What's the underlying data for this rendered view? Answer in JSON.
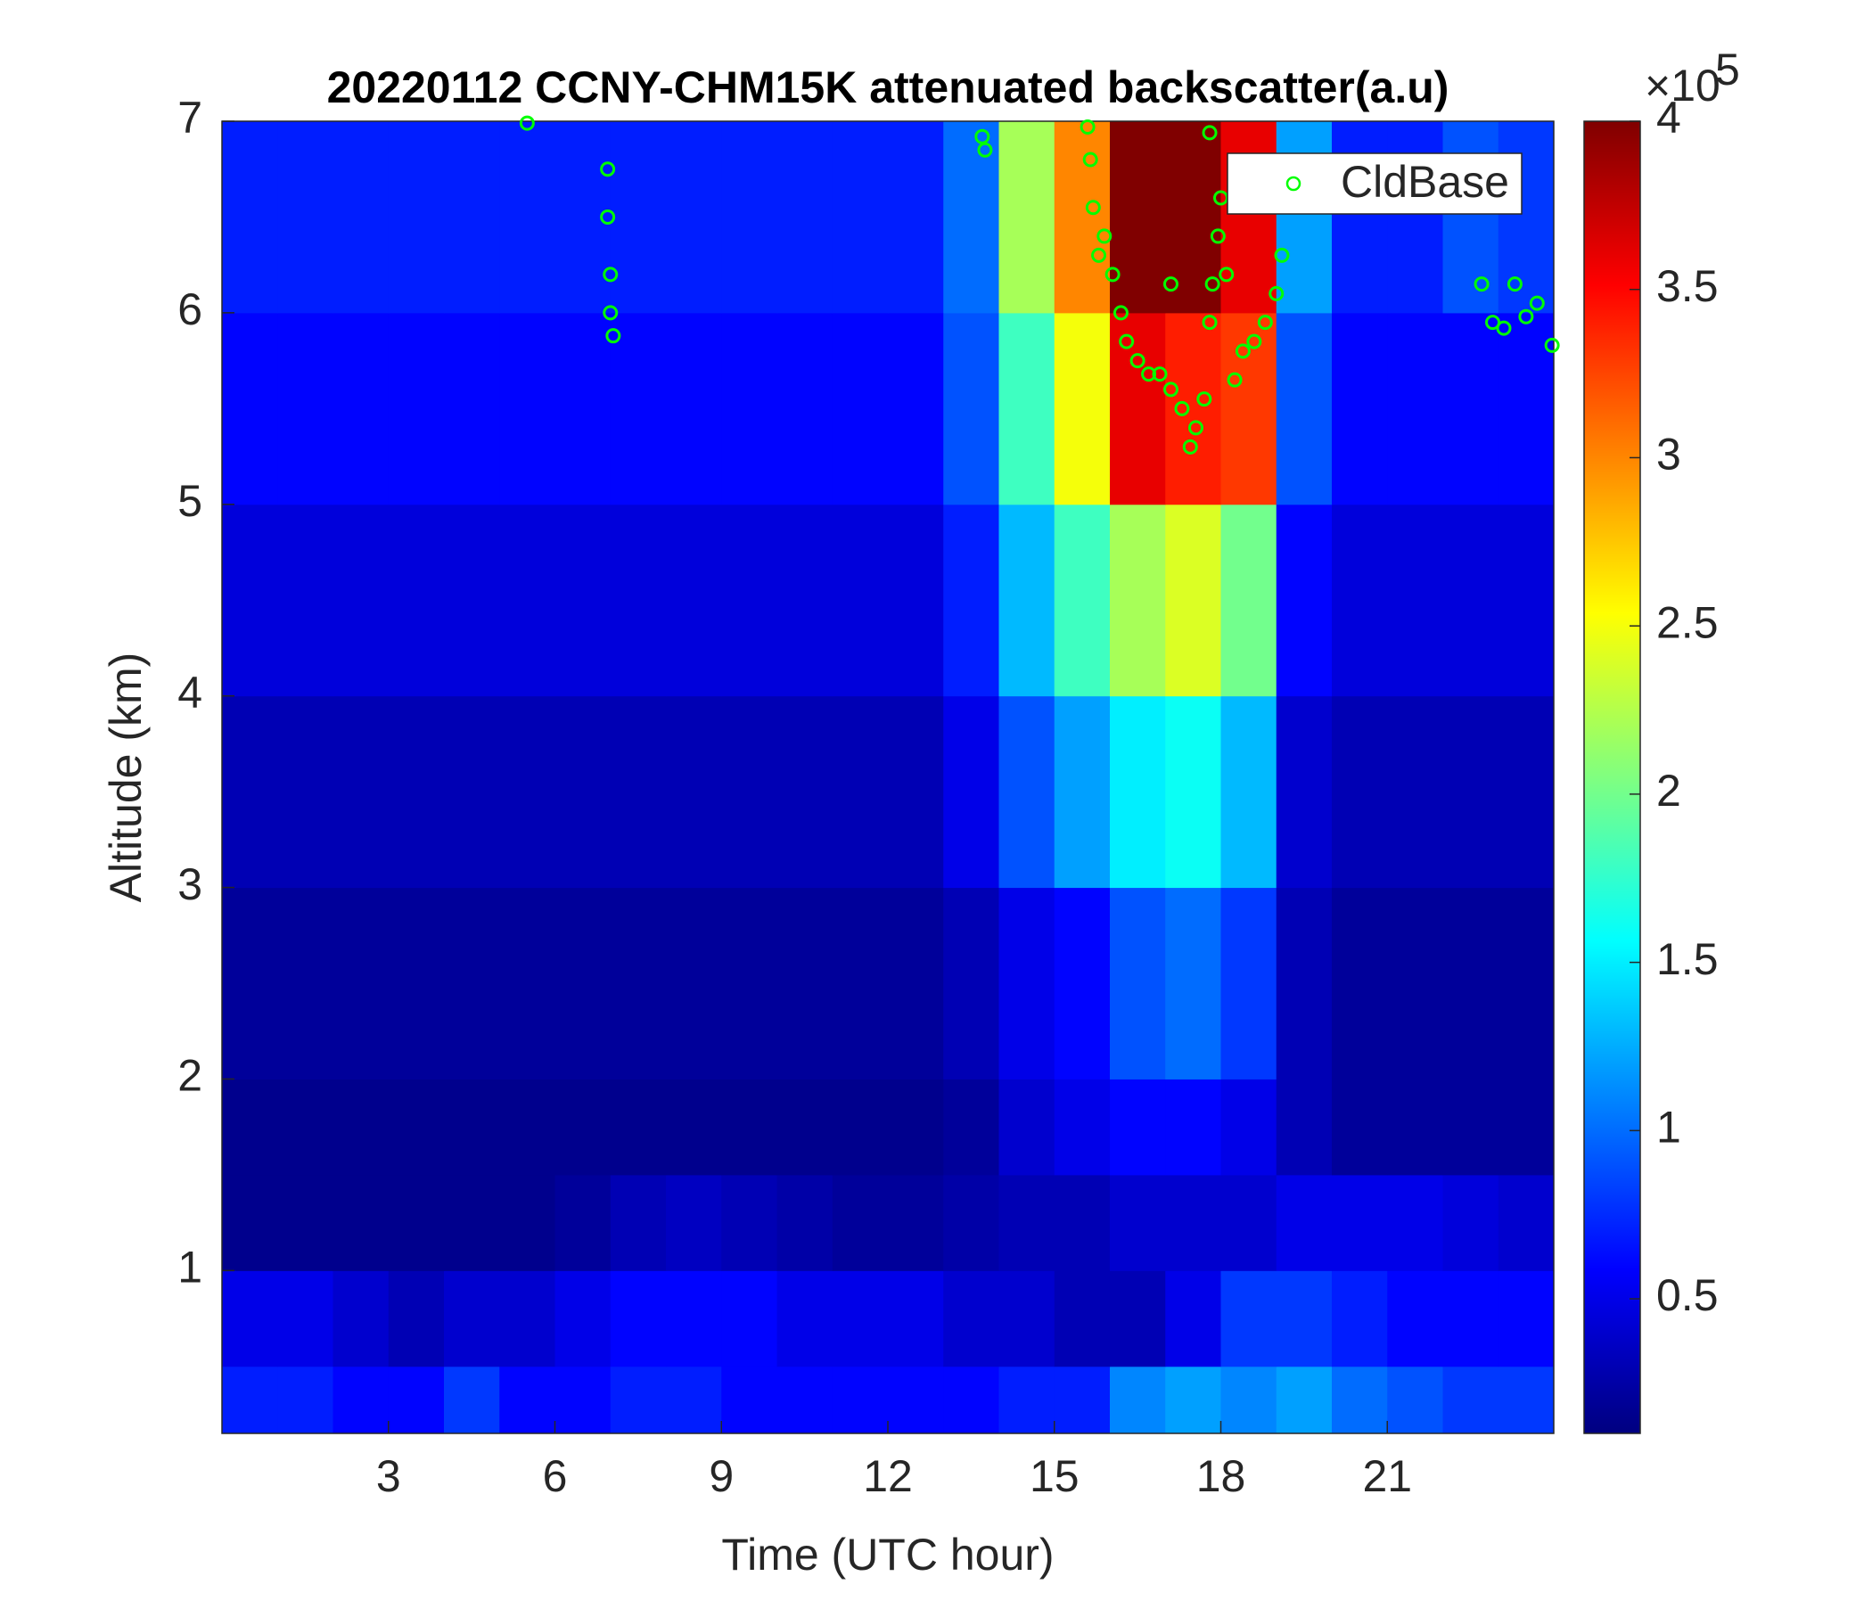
{
  "chart_data": {
    "type": "heatmap",
    "title": "20220112 CCNY-CHM15K attenuated backscatter(a.u)",
    "xlabel": "Time (UTC hour)",
    "ylabel": "Altitude (km)",
    "xlim": [
      0,
      24
    ],
    "xticks": [
      3,
      6,
      9,
      12,
      15,
      18,
      21
    ],
    "ylim": [
      0.15,
      7
    ],
    "yticks": [
      1,
      2,
      3,
      4,
      5,
      6,
      7
    ],
    "x_bins": [
      0,
      1,
      2,
      3,
      4,
      5,
      6,
      7,
      8,
      9,
      10,
      11,
      12,
      13,
      14,
      15,
      16,
      17,
      18,
      19,
      20,
      21,
      22,
      23,
      24
    ],
    "y_bins": [
      0.15,
      0.5,
      1,
      1.5,
      2,
      3,
      4,
      5,
      6,
      7
    ],
    "values": [
      [
        0.7,
        0.7,
        0.6,
        0.6,
        0.8,
        0.6,
        0.6,
        0.7,
        0.7,
        0.6,
        0.6,
        0.6,
        0.6,
        0.6,
        0.7,
        0.7,
        1.1,
        1.2,
        1.1,
        1.2,
        1.0,
        0.9,
        0.8,
        0.8
      ],
      [
        0.5,
        0.5,
        0.4,
        0.3,
        0.4,
        0.4,
        0.5,
        0.6,
        0.6,
        0.6,
        0.5,
        0.5,
        0.5,
        0.4,
        0.4,
        0.3,
        0.3,
        0.5,
        0.8,
        0.8,
        0.7,
        0.6,
        0.6,
        0.6
      ],
      [
        0.15,
        0.15,
        0.15,
        0.15,
        0.15,
        0.15,
        0.2,
        0.3,
        0.35,
        0.3,
        0.25,
        0.2,
        0.2,
        0.25,
        0.3,
        0.3,
        0.4,
        0.4,
        0.4,
        0.5,
        0.5,
        0.5,
        0.45,
        0.4
      ],
      [
        0.15,
        0.15,
        0.15,
        0.15,
        0.15,
        0.15,
        0.15,
        0.15,
        0.15,
        0.15,
        0.15,
        0.15,
        0.15,
        0.2,
        0.4,
        0.5,
        0.6,
        0.6,
        0.5,
        0.3,
        0.2,
        0.2,
        0.2,
        0.2
      ],
      [
        0.2,
        0.2,
        0.2,
        0.2,
        0.2,
        0.2,
        0.2,
        0.2,
        0.2,
        0.2,
        0.2,
        0.2,
        0.2,
        0.3,
        0.5,
        0.6,
        0.9,
        1.0,
        0.8,
        0.3,
        0.2,
        0.2,
        0.2,
        0.2
      ],
      [
        0.3,
        0.3,
        0.3,
        0.3,
        0.3,
        0.3,
        0.3,
        0.3,
        0.3,
        0.3,
        0.3,
        0.3,
        0.3,
        0.5,
        0.9,
        1.2,
        1.5,
        1.6,
        1.3,
        0.4,
        0.3,
        0.3,
        0.3,
        0.3
      ],
      [
        0.45,
        0.45,
        0.45,
        0.45,
        0.45,
        0.45,
        0.45,
        0.45,
        0.45,
        0.45,
        0.45,
        0.45,
        0.45,
        0.7,
        1.3,
        1.8,
        2.2,
        2.4,
        2.0,
        0.6,
        0.45,
        0.45,
        0.45,
        0.45
      ],
      [
        0.6,
        0.6,
        0.6,
        0.6,
        0.6,
        0.6,
        0.6,
        0.6,
        0.6,
        0.6,
        0.6,
        0.6,
        0.6,
        0.9,
        1.8,
        2.5,
        3.6,
        3.4,
        3.3,
        0.9,
        0.6,
        0.6,
        0.6,
        0.6
      ],
      [
        0.7,
        0.7,
        0.7,
        0.7,
        0.7,
        0.7,
        0.7,
        0.7,
        0.7,
        0.7,
        0.7,
        0.7,
        0.7,
        1.0,
        2.2,
        3.0,
        4,
        4,
        3.6,
        1.2,
        0.7,
        0.7,
        0.9,
        0.8
      ]
    ],
    "colormap": "jet",
    "clim": [
      0.1,
      4
    ],
    "cticks": [
      0.5,
      1,
      1.5,
      2,
      2.5,
      3,
      3.5,
      4
    ],
    "colorbar_multiplier": "×10",
    "colorbar_exponent": "5",
    "legend": "upper right",
    "overlay": {
      "type": "scatter",
      "name": "CldBase",
      "color": "#00ff00",
      "x": [
        5.5,
        6.95,
        6.95,
        7.0,
        7.0,
        7.05,
        13.7,
        13.75,
        15.6,
        15.65,
        15.7,
        15.8,
        15.9,
        16.05,
        16.2,
        16.3,
        16.5,
        16.7,
        16.9,
        17.1,
        17.1,
        17.3,
        17.45,
        17.55,
        17.7,
        17.8,
        17.8,
        17.85,
        17.95,
        18.0,
        18.1,
        18.25,
        18.4,
        18.6,
        18.8,
        19.0,
        19.1,
        22.7,
        22.9,
        23.1,
        23.3,
        23.5,
        23.7,
        23.97
      ],
      "y": [
        6.99,
        6.75,
        6.5,
        6.2,
        6.0,
        5.88,
        6.92,
        6.85,
        6.97,
        6.8,
        6.55,
        6.3,
        6.4,
        6.2,
        6.0,
        5.85,
        5.75,
        5.68,
        5.68,
        5.6,
        6.15,
        5.5,
        5.3,
        5.4,
        5.55,
        5.95,
        6.94,
        6.15,
        6.4,
        6.6,
        6.2,
        5.65,
        5.8,
        5.85,
        5.95,
        6.1,
        6.3,
        6.15,
        5.95,
        5.92,
        6.15,
        5.98,
        6.05,
        5.83
      ]
    }
  }
}
